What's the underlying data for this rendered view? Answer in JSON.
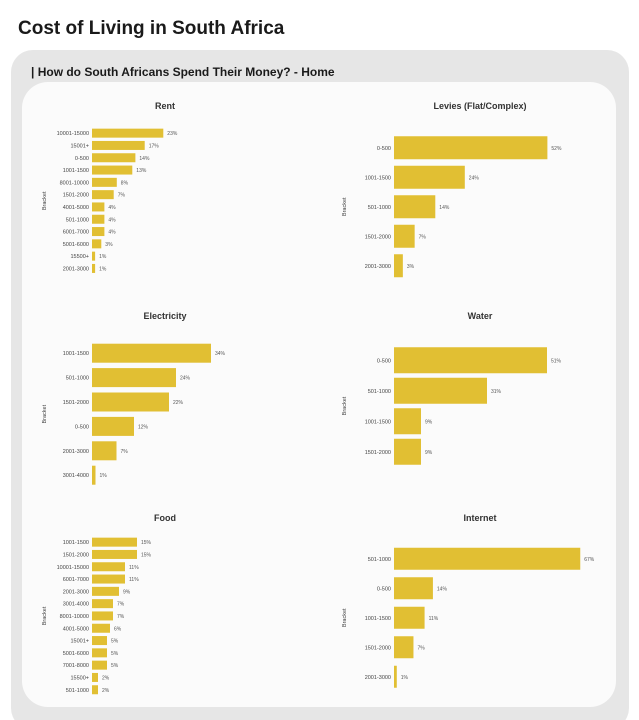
{
  "page": {
    "title": "Cost of Living in South Africa",
    "section_title": "| How do South Africans Spend Their Money? - Home"
  },
  "colors": {
    "bar": "#E1BF33",
    "panel": "#e6e6e6",
    "card": "#fbfbfb"
  },
  "chart_data": [
    {
      "type": "bar",
      "orientation": "horizontal",
      "title": "Rent",
      "ylabel": "Bracket",
      "categories": [
        "10001-15000",
        "15001+",
        "0-500",
        "1001-1500",
        "8001-10000",
        "1501-2000",
        "4001-5000",
        "501-1000",
        "6001-7000",
        "5001-6000",
        "15500+",
        "2001-3000"
      ],
      "values": [
        23,
        17,
        14,
        13,
        8,
        7,
        4,
        4,
        4,
        3,
        1,
        1
      ],
      "labels": [
        "23%",
        "17%",
        "14%",
        "13%",
        "8%",
        "7%",
        "4%",
        "4%",
        "4%",
        "3%",
        "1%",
        "1%"
      ]
    },
    {
      "type": "bar",
      "orientation": "horizontal",
      "title": "Levies (Flat/Complex)",
      "ylabel": "Bracket",
      "categories": [
        "0-500",
        "1001-1500",
        "501-1000",
        "1501-2000",
        "2001-3000"
      ],
      "values": [
        52,
        24,
        14,
        7,
        3
      ],
      "labels": [
        "52%",
        "24%",
        "14%",
        "7%",
        "3%"
      ]
    },
    {
      "type": "bar",
      "orientation": "horizontal",
      "title": "Electricity",
      "ylabel": "Bracket",
      "categories": [
        "1001-1500",
        "501-1000",
        "1501-2000",
        "0-500",
        "2001-3000",
        "3001-4000"
      ],
      "values": [
        34,
        24,
        22,
        12,
        7,
        1
      ],
      "labels": [
        "34%",
        "24%",
        "22%",
        "12%",
        "7%",
        "1%"
      ]
    },
    {
      "type": "bar",
      "orientation": "horizontal",
      "title": "Water",
      "ylabel": "Bracket",
      "categories": [
        "0-500",
        "501-1000",
        "1001-1500",
        "1501-2000"
      ],
      "values": [
        51,
        31,
        9,
        9
      ],
      "labels": [
        "51%",
        "31%",
        "9%",
        "9%"
      ]
    },
    {
      "type": "bar",
      "orientation": "horizontal",
      "title": "Food",
      "ylabel": "Bracket",
      "categories": [
        "1001-1500",
        "1501-2000",
        "10001-15000",
        "6001-7000",
        "2001-3000",
        "3001-4000",
        "8001-10000",
        "4001-5000",
        "15001+",
        "5001-6000",
        "7001-8000",
        "15500+",
        "501-1000"
      ],
      "values": [
        15,
        15,
        11,
        11,
        9,
        7,
        7,
        6,
        5,
        5,
        5,
        2,
        2
      ],
      "labels": [
        "15%",
        "15%",
        "11%",
        "11%",
        "9%",
        "7%",
        "7%",
        "6%",
        "5%",
        "5%",
        "5%",
        "2%",
        "2%"
      ]
    },
    {
      "type": "bar",
      "orientation": "horizontal",
      "title": "Internet",
      "ylabel": "Bracket",
      "categories": [
        "501-1000",
        "0-500",
        "1001-1500",
        "1501-2000",
        "2001-3000"
      ],
      "values": [
        67,
        14,
        11,
        7,
        1
      ],
      "labels": [
        "67%",
        "14%",
        "11%",
        "7%",
        "1%"
      ]
    }
  ]
}
